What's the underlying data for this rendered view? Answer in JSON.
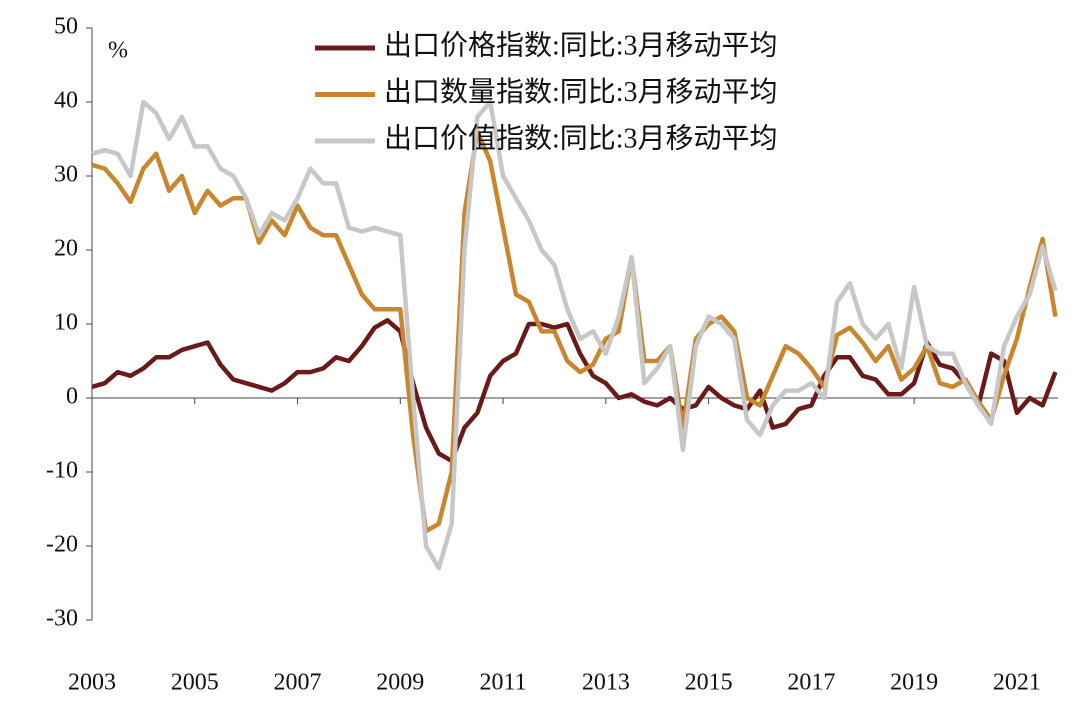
{
  "chart_data": {
    "type": "line",
    "unit_label": "%",
    "x": [
      2003,
      2003.25,
      2003.5,
      2003.75,
      2004,
      2004.25,
      2004.5,
      2004.75,
      2005,
      2005.25,
      2005.5,
      2005.75,
      2006,
      2006.25,
      2006.5,
      2006.75,
      2007,
      2007.25,
      2007.5,
      2007.75,
      2008,
      2008.25,
      2008.5,
      2008.75,
      2009,
      2009.25,
      2009.5,
      2009.75,
      2010,
      2010.25,
      2010.5,
      2010.75,
      2011,
      2011.25,
      2011.5,
      2011.75,
      2012,
      2012.25,
      2012.5,
      2012.75,
      2013,
      2013.25,
      2013.5,
      2013.75,
      2014,
      2014.25,
      2014.5,
      2014.75,
      2015,
      2015.25,
      2015.5,
      2015.75,
      2016,
      2016.25,
      2016.5,
      2016.75,
      2017,
      2017.25,
      2017.5,
      2017.75,
      2018,
      2018.25,
      2018.5,
      2018.75,
      2019,
      2019.25,
      2019.5,
      2019.75,
      2020,
      2020.25,
      2020.5,
      2020.75,
      2021,
      2021.25,
      2021.5,
      2021.75
    ],
    "series": [
      {
        "name": "出口价格指数:同比:3月移动平均",
        "color": "#6b1a1a",
        "values": [
          1.5,
          2,
          3.5,
          3,
          4,
          5.5,
          5.5,
          6.5,
          7,
          7.5,
          4.5,
          2.5,
          2,
          1.5,
          1,
          2,
          3.5,
          3.5,
          4,
          5.5,
          5,
          7,
          9.5,
          10.5,
          9,
          2,
          -4,
          -7.5,
          -8.5,
          -4,
          -2,
          3,
          5,
          6,
          10,
          10,
          9.5,
          10,
          6,
          3,
          2,
          0,
          0.5,
          -0.5,
          -1,
          0,
          -1.5,
          -1,
          1.5,
          0,
          -1,
          -1.5,
          1,
          -4,
          -3.5,
          -1.5,
          -1,
          3,
          5.5,
          5.5,
          3,
          2.5,
          0.5,
          0.5,
          2,
          7.5,
          4.5,
          4,
          2,
          -1,
          6,
          5,
          -2,
          0,
          -1,
          3.5
        ]
      },
      {
        "name": "出口数量指数:同比:3月移动平均",
        "color": "#c8862e",
        "values": [
          31.5,
          31,
          29,
          26.5,
          31,
          33,
          28,
          30,
          25,
          28,
          26,
          27,
          27,
          21,
          24,
          22,
          26,
          23,
          22,
          22,
          18,
          14,
          12,
          12,
          12,
          -5,
          -18,
          -17,
          -10,
          25,
          36,
          32,
          23,
          14,
          13,
          9,
          9,
          5,
          3.5,
          4.5,
          8,
          9,
          19,
          5,
          5,
          7,
          -4,
          8,
          10,
          11,
          9,
          0,
          -1,
          3,
          7,
          6,
          4,
          1.5,
          8.5,
          9.5,
          7.5,
          5,
          7,
          2.5,
          4,
          7,
          2,
          1.5,
          2.5,
          -0.5,
          -3,
          3,
          8,
          15,
          21.5,
          11
        ]
      },
      {
        "name": "出口价值指数:同比:3月移动平均",
        "color": "#c7c7c7",
        "values": [
          33,
          33.5,
          33,
          30,
          40,
          38.5,
          35,
          38,
          34,
          34,
          31,
          30,
          27,
          22,
          25,
          24,
          27,
          31,
          29,
          29,
          23,
          22.5,
          23,
          22.5,
          22,
          0,
          -20,
          -23,
          -17,
          20,
          38,
          40,
          30,
          27,
          24,
          20,
          18,
          12,
          8,
          9,
          6,
          11,
          19,
          2,
          4,
          7,
          -7,
          7,
          11,
          10,
          8,
          -3,
          -5,
          -1,
          1,
          1,
          2,
          0,
          13,
          15.5,
          10,
          8,
          10,
          4,
          15,
          7,
          6,
          6,
          2,
          -1,
          -3.5,
          7,
          11,
          14,
          20.5,
          14.5
        ]
      }
    ],
    "xlim": [
      2003,
      2021.8
    ],
    "xticks": [
      2003,
      2005,
      2007,
      2009,
      2011,
      2013,
      2015,
      2017,
      2019,
      2021
    ],
    "ylim": [
      -30,
      50
    ],
    "yticks": [
      -30,
      -20,
      -10,
      0,
      10,
      20,
      30,
      40,
      50
    ]
  }
}
